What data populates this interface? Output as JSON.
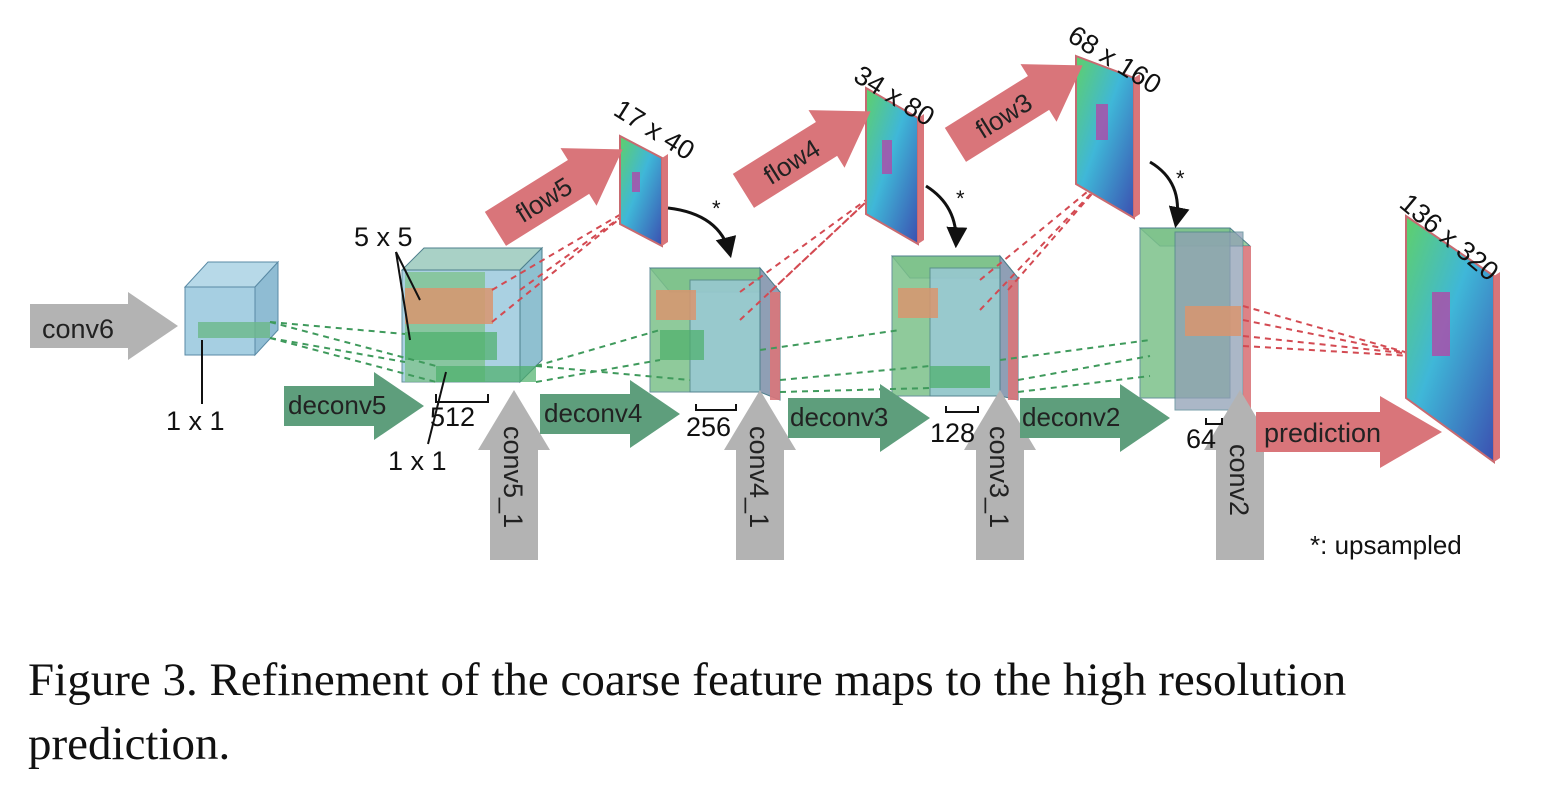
{
  "colors": {
    "gray_arrow": "#b3b3b3",
    "green_arrow": "#5e9e7c",
    "red_arrow": "#d9757a",
    "blue_block": "#9cc9de",
    "green_block": "#7cc18a",
    "orange_block": "#d9956e",
    "dashed_green": "#3f9a5c",
    "dashed_red": "#d34a52"
  },
  "labels": {
    "conv6": "conv6",
    "deconv5": "deconv5",
    "deconv4": "deconv4",
    "deconv3": "deconv3",
    "deconv2": "deconv2",
    "conv5_1": "conv5_1",
    "conv4_1": "conv4_1",
    "conv3_1": "conv3_1",
    "conv2": "conv2",
    "flow5": "flow5",
    "flow4": "flow4",
    "flow3": "flow3",
    "prediction": "prediction",
    "size_17x40": "17 x 40",
    "size_34x80": "34 x 80",
    "size_68x160": "68 x 160",
    "size_136x320": "136 x 320",
    "k_5x5": "5 x 5",
    "k_1x1_a": "1 x 1",
    "k_1x1_b": "1 x 1",
    "ch_512": "512",
    "ch_256": "256",
    "ch_128": "128",
    "ch_64": "64",
    "star": "*",
    "legend": "*: upsampled"
  },
  "caption": "Figure 3. Refinement of the coarse feature maps to the high resolution prediction."
}
